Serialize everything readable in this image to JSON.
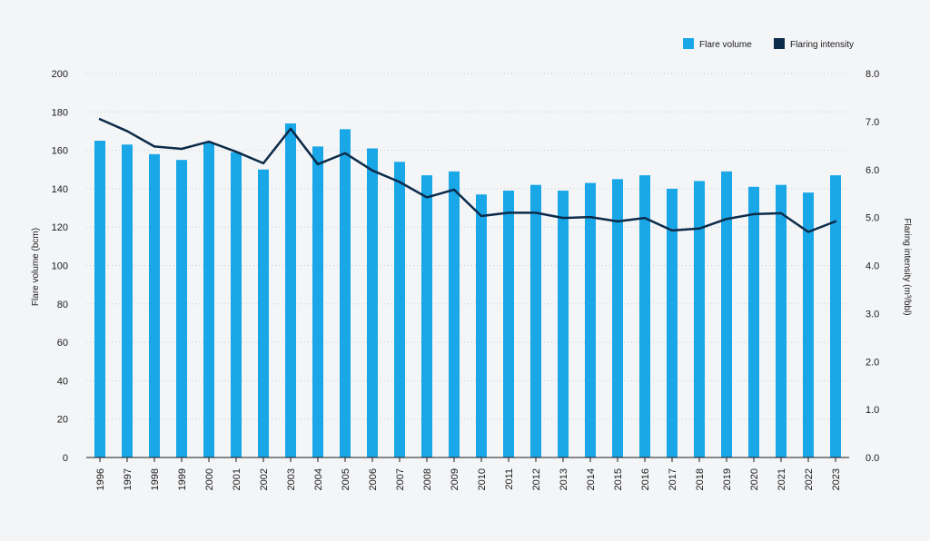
{
  "chart_data": {
    "type": "bar",
    "categories": [
      "1996",
      "1997",
      "1998",
      "1999",
      "2000",
      "2001",
      "2002",
      "2003",
      "2004",
      "2005",
      "2006",
      "2007",
      "2008",
      "2009",
      "2010",
      "2011",
      "2012",
      "2013",
      "2014",
      "2015",
      "2016",
      "2017",
      "2018",
      "2019",
      "2020",
      "2021",
      "2022",
      "2023"
    ],
    "series": [
      {
        "name": "Flare volume",
        "kind": "bar",
        "axis": "left",
        "color": "#1aa7e8",
        "values": [
          165,
          163,
          158,
          155,
          164,
          159,
          150,
          174,
          162,
          171,
          161,
          154,
          147,
          149,
          137,
          139,
          142,
          139,
          143,
          145,
          147,
          140,
          144,
          149,
          141,
          142,
          138,
          147
        ]
      },
      {
        "name": "Flaring intensity",
        "kind": "line",
        "axis": "right",
        "color": "#0b2b4a",
        "values": [
          7.05,
          6.8,
          6.48,
          6.43,
          6.58,
          6.37,
          6.13,
          6.85,
          6.11,
          6.34,
          5.98,
          5.74,
          5.42,
          5.58,
          5.03,
          5.1,
          5.1,
          4.99,
          5.01,
          4.92,
          4.99,
          4.73,
          4.77,
          4.97,
          5.07,
          5.09,
          4.7,
          4.92
        ]
      }
    ],
    "ylabel": "Flare volume (bcm)",
    "ylim": [
      0,
      200
    ],
    "yticks": [
      "0",
      "20",
      "40",
      "60",
      "80",
      "100",
      "120",
      "140",
      "160",
      "180",
      "200"
    ],
    "y2label": "Flaring intensity (m³/bbl)",
    "y2lim": [
      0,
      8
    ],
    "y2ticks": [
      "0.0",
      "1.0",
      "2.0",
      "3.0",
      "4.0",
      "5.0",
      "6.0",
      "7.0",
      "8.0"
    ],
    "grid": "horizontal dotted",
    "legend_position": "top-right"
  },
  "legend": {
    "bar_label": "Flare volume",
    "line_label": "Flaring intensity"
  },
  "colors": {
    "background": "#f4f5f7",
    "bar": "#1aa7e8",
    "line": "#0b2b4a",
    "grid": "#c8ccd2"
  }
}
